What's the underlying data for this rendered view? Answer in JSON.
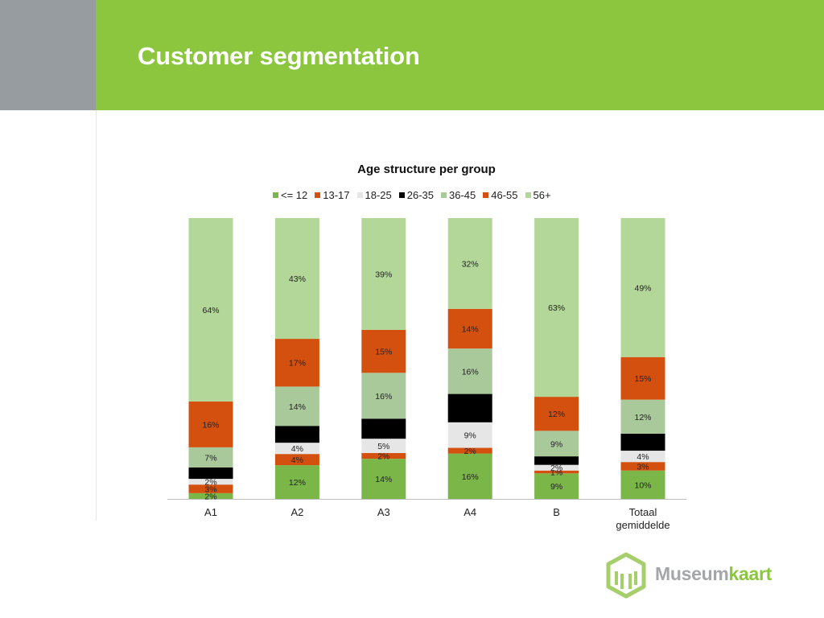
{
  "header": {
    "title": "Customer segmentation"
  },
  "logo": {
    "part1": "Museum",
    "part2": "kaart"
  },
  "colors": {
    "header_green": "#8cc63f",
    "side_gray": "#979ca1"
  },
  "chart_data": {
    "type": "bar",
    "stacked": true,
    "percent_stacked": true,
    "title": "Age structure per group",
    "legend_position": "top",
    "grid": false,
    "categories": [
      "A1",
      "A2",
      "A3",
      "A4",
      "B",
      "Totaal gemiddelde"
    ],
    "ylim": [
      0,
      100
    ],
    "series": [
      {
        "name": "<= 12",
        "color": "#7ab648",
        "values": [
          2,
          12,
          14,
          16,
          9,
          10
        ],
        "labels": [
          "2%",
          "12%",
          "14%",
          "16%",
          "9%",
          "10%"
        ]
      },
      {
        "name": "13-17",
        "color": "#d4500f",
        "values": [
          3,
          4,
          2,
          2,
          1,
          3
        ],
        "labels": [
          "3%",
          "4%",
          "2%",
          "2%",
          "1%",
          "3%"
        ]
      },
      {
        "name": "18-25",
        "color": "#e6e6e6",
        "values": [
          2,
          4,
          5,
          9,
          2,
          4
        ],
        "labels": [
          "2%",
          "4%",
          "5%",
          "9%",
          "2%",
          "4%"
        ]
      },
      {
        "name": "26-35",
        "color": "#000000",
        "values": [
          4,
          6,
          7,
          10,
          3,
          6
        ],
        "labels": [
          "",
          "",
          "",
          "",
          "",
          ""
        ]
      },
      {
        "name": "36-45",
        "color": "#aac99b",
        "values": [
          7,
          14,
          16,
          16,
          9,
          12
        ],
        "labels": [
          "7%",
          "14%",
          "16%",
          "16%",
          "9%",
          "12%"
        ]
      },
      {
        "name": "46-55",
        "color": "#d4500f",
        "values": [
          16,
          17,
          15,
          14,
          12,
          15
        ],
        "labels": [
          "16%",
          "17%",
          "15%",
          "14%",
          "12%",
          "15%"
        ]
      },
      {
        "name": "56+",
        "color": "#b2d798",
        "values": [
          64,
          43,
          39,
          32,
          63,
          49
        ],
        "labels": [
          "64%",
          "43%",
          "39%",
          "32%",
          "63%",
          "49%"
        ]
      }
    ]
  }
}
